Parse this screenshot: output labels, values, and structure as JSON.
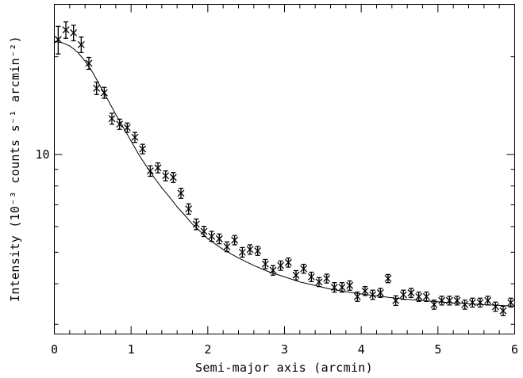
{
  "chart_data": {
    "type": "scatter",
    "title": "",
    "xlabel": "Semi-major axis (arcmin)",
    "ylabel": "Intensity (10⁻³ counts s⁻¹ arcmin⁻²)",
    "xlim": [
      0,
      6
    ],
    "ylim": [
      2.8,
      29
    ],
    "yscale": "log",
    "grid": false,
    "x_ticks": [
      0,
      1,
      2,
      3,
      4,
      5,
      6
    ],
    "y_ticks": [
      10
    ],
    "series": [
      {
        "type": "scatter_errorbar",
        "marker": "x",
        "x": [
          0.05,
          0.15,
          0.25,
          0.35,
          0.45,
          0.55,
          0.65,
          0.75,
          0.85,
          0.95,
          1.05,
          1.15,
          1.25,
          1.35,
          1.45,
          1.55,
          1.65,
          1.75,
          1.85,
          1.95,
          2.05,
          2.15,
          2.25,
          2.35,
          2.45,
          2.55,
          2.65,
          2.75,
          2.85,
          2.95,
          3.05,
          3.15,
          3.25,
          3.35,
          3.45,
          3.55,
          3.65,
          3.75,
          3.85,
          3.95,
          4.05,
          4.15,
          4.25,
          4.35,
          4.45,
          4.55,
          4.65,
          4.75,
          4.85,
          4.95,
          5.05,
          5.15,
          5.25,
          5.35,
          5.45,
          5.55,
          5.65,
          5.75,
          5.85,
          5.95
        ],
        "y": [
          22.6,
          24.2,
          23.7,
          21.8,
          19.1,
          16.0,
          15.5,
          12.9,
          12.4,
          12.1,
          11.3,
          10.4,
          8.9,
          9.1,
          8.6,
          8.5,
          7.6,
          6.8,
          6.1,
          5.8,
          5.6,
          5.5,
          5.2,
          5.45,
          5.0,
          5.1,
          5.05,
          4.6,
          4.4,
          4.55,
          4.65,
          4.25,
          4.45,
          4.2,
          4.05,
          4.15,
          3.9,
          3.9,
          3.95,
          3.65,
          3.8,
          3.7,
          3.75,
          4.15,
          3.55,
          3.7,
          3.75,
          3.65,
          3.65,
          3.45,
          3.55,
          3.55,
          3.55,
          3.45,
          3.5,
          3.5,
          3.55,
          3.4,
          3.3,
          3.5
        ],
        "yerr": [
          2.2,
          1.4,
          1.3,
          1.2,
          0.8,
          0.7,
          0.6,
          0.5,
          0.45,
          0.4,
          0.4,
          0.35,
          0.33,
          0.32,
          0.3,
          0.3,
          0.27,
          0.25,
          0.23,
          0.21,
          0.2,
          0.19,
          0.18,
          0.18,
          0.17,
          0.17,
          0.16,
          0.15,
          0.15,
          0.15,
          0.15,
          0.14,
          0.14,
          0.14,
          0.13,
          0.13,
          0.13,
          0.13,
          0.13,
          0.12,
          0.12,
          0.12,
          0.12,
          0.12,
          0.12,
          0.12,
          0.12,
          0.12,
          0.12,
          0.11,
          0.11,
          0.11,
          0.11,
          0.11,
          0.11,
          0.11,
          0.11,
          0.11,
          0.11,
          0.11
        ]
      },
      {
        "type": "line",
        "x": [
          0,
          0.1,
          0.2,
          0.3,
          0.4,
          0.5,
          0.6,
          0.7,
          0.8,
          0.9,
          1.0,
          1.1,
          1.2,
          1.3,
          1.4,
          1.5,
          1.6,
          1.7,
          1.8,
          1.9,
          2.0,
          2.2,
          2.4,
          2.6,
          2.8,
          3.0,
          3.2,
          3.4,
          3.6,
          3.8,
          4.0,
          4.2,
          4.4,
          4.6,
          4.8,
          5.0,
          5.2,
          5.4,
          5.6,
          5.8,
          6.0
        ],
        "y": [
          22.3,
          22.1,
          21.6,
          20.7,
          19.4,
          17.9,
          16.2,
          14.7,
          13.3,
          12.1,
          11.0,
          10.0,
          9.2,
          8.5,
          7.9,
          7.4,
          6.9,
          6.5,
          6.1,
          5.8,
          5.5,
          5.1,
          4.8,
          4.55,
          4.35,
          4.2,
          4.05,
          3.95,
          3.85,
          3.78,
          3.72,
          3.67,
          3.62,
          3.58,
          3.55,
          3.52,
          3.49,
          3.47,
          3.45,
          3.43,
          3.41
        ]
      }
    ]
  }
}
